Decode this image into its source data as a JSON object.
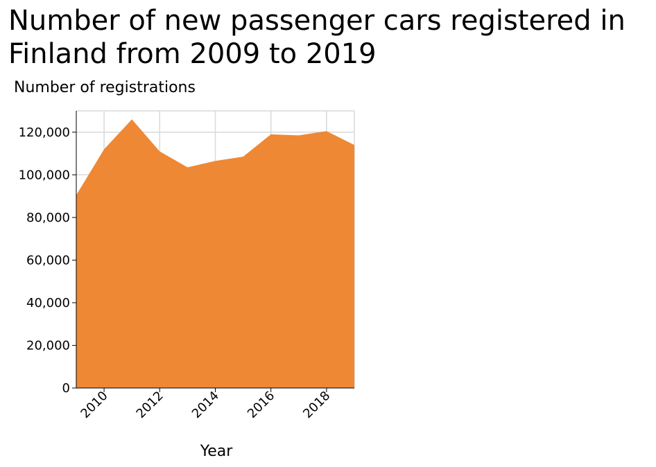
{
  "chart_data": {
    "type": "area",
    "title": "Number of new passenger cars registered in Finland from 2009 to 2019",
    "xlabel": "Year",
    "ylabel": "Number of registrations",
    "x": [
      2009,
      2010,
      2011,
      2012,
      2013,
      2014,
      2015,
      2016,
      2017,
      2018,
      2019
    ],
    "values": [
      90500,
      112000,
      126000,
      111000,
      103500,
      106500,
      108500,
      119000,
      118500,
      120500,
      114000
    ],
    "xlim": [
      2009,
      2019
    ],
    "ylim": [
      0,
      130000
    ],
    "x_ticks": [
      2010,
      2012,
      2014,
      2016,
      2018
    ],
    "x_tick_labels": [
      "2010",
      "2012",
      "2014",
      "2016",
      "2018"
    ],
    "y_ticks": [
      0,
      20000,
      40000,
      60000,
      80000,
      100000,
      120000
    ],
    "y_tick_labels": [
      "0",
      "20,000",
      "40,000",
      "60,000",
      "80,000",
      "100,000",
      "120,000"
    ],
    "grid": true,
    "fill_color": "#ee8834",
    "grid_color": "#d9d9d9"
  }
}
